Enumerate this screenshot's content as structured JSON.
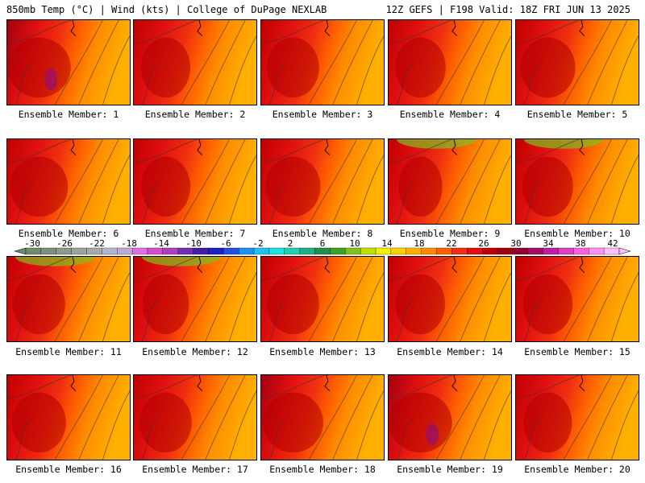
{
  "header": {
    "left": "850mb Temp (°C) | Wind (kts) | College of DuPage NEXLAB",
    "right": "12Z GEFS | F198 Valid: 18Z FRI JUN 13 2025"
  },
  "members": [
    {
      "label": "Ensemble Member: 1",
      "intensity": 0.85
    },
    {
      "label": "Ensemble Member: 2",
      "intensity": 0.6
    },
    {
      "label": "Ensemble Member: 3",
      "intensity": 0.65
    },
    {
      "label": "Ensemble Member: 4",
      "intensity": 0.62
    },
    {
      "label": "Ensemble Member: 5",
      "intensity": 0.7
    },
    {
      "label": "Ensemble Member: 6",
      "intensity": 0.75
    },
    {
      "label": "Ensemble Member: 7",
      "intensity": 0.6
    },
    {
      "label": "Ensemble Member: 8",
      "intensity": 0.7
    },
    {
      "label": "Ensemble Member: 9",
      "intensity": 0.5
    },
    {
      "label": "Ensemble Member: 10",
      "intensity": 0.62
    },
    {
      "label": "Ensemble Member: 11",
      "intensity": 0.65
    },
    {
      "label": "Ensemble Member: 12",
      "intensity": 0.55
    },
    {
      "label": "Ensemble Member: 13",
      "intensity": 0.65
    },
    {
      "label": "Ensemble Member: 14",
      "intensity": 0.6
    },
    {
      "label": "Ensemble Member: 15",
      "intensity": 0.6
    },
    {
      "label": "Ensemble Member: 16",
      "intensity": 0.68
    },
    {
      "label": "Ensemble Member: 17",
      "intensity": 0.65
    },
    {
      "label": "Ensemble Member: 18",
      "intensity": 0.8
    },
    {
      "label": "Ensemble Member: 19",
      "intensity": 0.85
    },
    {
      "label": "Ensemble Member: 20",
      "intensity": 0.58
    }
  ],
  "colorbar": {
    "labels": [
      "-30",
      "-26",
      "-22",
      "-18",
      "-14",
      "-10",
      "-6",
      "-2",
      "2",
      "6",
      "10",
      "14",
      "18",
      "22",
      "26",
      "30",
      "34",
      "38",
      "42"
    ],
    "colors": [
      "#6f8a6f",
      "#7c8f7f",
      "#8a9a8c",
      "#9aa49b",
      "#a8a8a8",
      "#b0b8c8",
      "#c0a8d8",
      "#e070e0",
      "#d050d0",
      "#b040c0",
      "#7030b0",
      "#4020a0",
      "#2020c0",
      "#2050e0",
      "#2090f0",
      "#20c0f0",
      "#20e0e0",
      "#20d0b0",
      "#20b080",
      "#209050",
      "#40a020",
      "#80c020",
      "#c0e000",
      "#f0f000",
      "#ffd000",
      "#ffb000",
      "#ff8c00",
      "#ff6000",
      "#f03010",
      "#e01010",
      "#c00000",
      "#a00010",
      "#900030",
      "#a01060",
      "#c020a0",
      "#e040c0",
      "#ff60e0",
      "#ff90f0",
      "#ffc0ff"
    ]
  }
}
